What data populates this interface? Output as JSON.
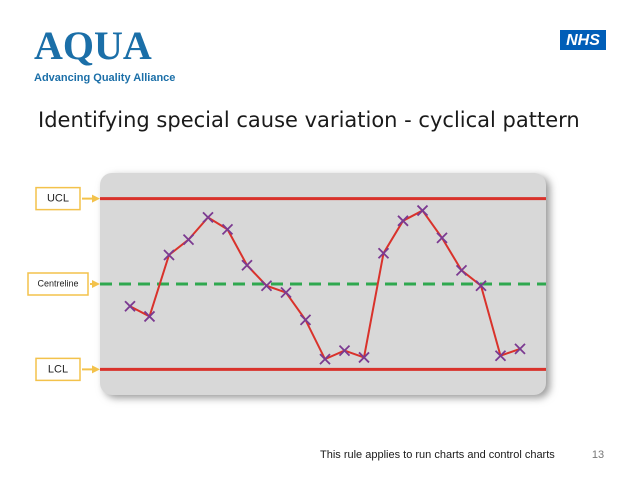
{
  "header": {
    "logo": "AQUA",
    "logo_tagline": "Advancing Quality Alliance",
    "nhs_logo": "NHS"
  },
  "footer": {
    "note": "This rule applies to run charts and control charts",
    "page_number": "13"
  },
  "chart_data": {
    "type": "line",
    "title": "Identifying special cause variation  - cyclical pattern",
    "categories": [
      null,
      null,
      null,
      null,
      null,
      null,
      null,
      null,
      null,
      null,
      null,
      null,
      null,
      null,
      null,
      null,
      null,
      null,
      null,
      null,
      null
    ],
    "values": [
      37,
      31,
      67,
      76,
      89,
      82,
      61,
      49,
      45,
      29,
      6,
      11,
      7,
      68,
      87,
      93,
      77,
      58,
      49,
      8,
      12
    ],
    "color": "#d9322b",
    "marker_color": "#7b3a91",
    "ylim": [
      -15,
      115
    ],
    "control_lines": [
      {
        "label": "UCL",
        "value": 100,
        "color": "#d9322b",
        "dashed": false
      },
      {
        "label": "Centreline",
        "value": 50,
        "color": "#2fa84f",
        "dashed": true
      },
      {
        "label": "LCL",
        "value": 0,
        "color": "#d9322b",
        "dashed": false
      }
    ]
  }
}
